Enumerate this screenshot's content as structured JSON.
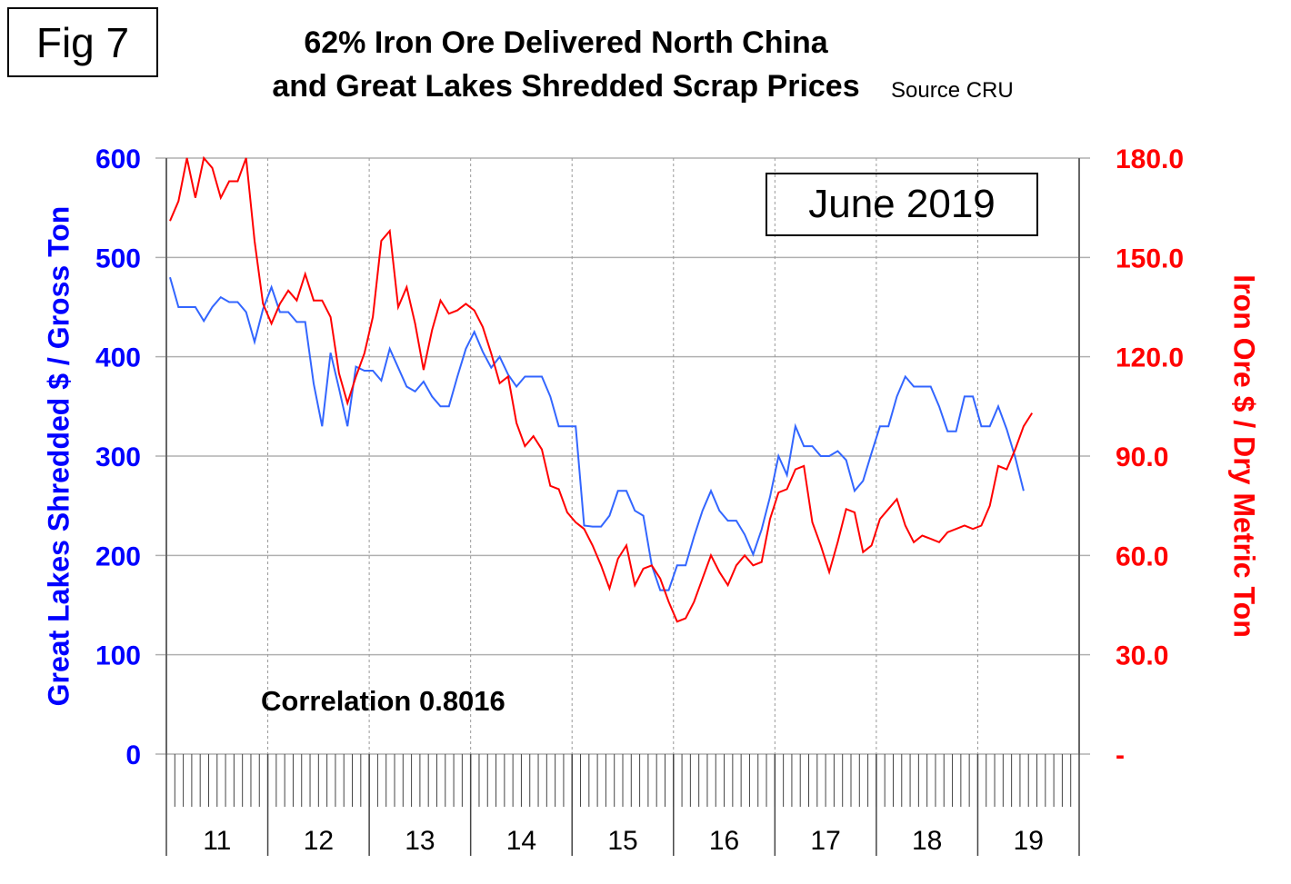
{
  "fig_label": "Fig 7",
  "chart_data": {
    "type": "line",
    "title_line1": "62% Iron Ore Delivered North China",
    "title_line2": "and Great Lakes Shredded Scrap Prices",
    "source": "Source CRU",
    "annotation_date": "June 2019",
    "annotation_correlation": "Correlation 0.8016",
    "ylabel_left": "Great Lakes Shredded $ / Gross Ton",
    "ylabel_right": "Iron Ore $ / Dry Metric Ton",
    "ylim_left": [
      0,
      600
    ],
    "ylim_right": [
      0,
      180
    ],
    "yticks_left": [
      "0",
      "100",
      "200",
      "300",
      "400",
      "500",
      "600"
    ],
    "yticks_right": [
      "-",
      "30.0",
      "60.0",
      "90.0",
      "120.0",
      "150.0",
      "180.0"
    ],
    "xticks": [
      "11",
      "12",
      "13",
      "14",
      "15",
      "16",
      "17",
      "18",
      "19"
    ],
    "x_start": "2011-01",
    "x_frequency": "monthly",
    "grid": true,
    "colors": {
      "scrap": "#3366ff",
      "iron_ore": "#ff0000",
      "left_axis": "#0000ff",
      "right_axis": "#ff0000"
    },
    "series": [
      {
        "axis": "left",
        "color": "#3366ff",
        "values": [
          480,
          450,
          450,
          450,
          436,
          450,
          460,
          455,
          455,
          445,
          415,
          448,
          470,
          445,
          445,
          435,
          435,
          373,
          330,
          404,
          368,
          330,
          390,
          386,
          386,
          376,
          408,
          389,
          370,
          365,
          375,
          360,
          350,
          350,
          380,
          408,
          425,
          405,
          389,
          400,
          382,
          370,
          380,
          380,
          380,
          360,
          330,
          330,
          330,
          230,
          229,
          229,
          240,
          265,
          265,
          245,
          240,
          190,
          165,
          165,
          190,
          190,
          219,
          245,
          265,
          245,
          235,
          235,
          221,
          201,
          226,
          259,
          300,
          281,
          330,
          310,
          310,
          300,
          300,
          305,
          296,
          265,
          275,
          303,
          330,
          330,
          360,
          380,
          370,
          370,
          370,
          350,
          325,
          325,
          360,
          360,
          330,
          330,
          350,
          327,
          299,
          265
        ]
      },
      {
        "axis": "right",
        "color": "#ff0000",
        "values": [
          161,
          167,
          180,
          168,
          180,
          177,
          168,
          173,
          173,
          180,
          155,
          136,
          130,
          136,
          140,
          137,
          145,
          137,
          137,
          132,
          115,
          106,
          114,
          121,
          132,
          155,
          158,
          135,
          141,
          130,
          116,
          128,
          137,
          133,
          134,
          136,
          134,
          129,
          121,
          112,
          114,
          100,
          93,
          96,
          92,
          81,
          80,
          73,
          70,
          68,
          63,
          57,
          50,
          59,
          63,
          51,
          56,
          57,
          53,
          46,
          40,
          41,
          46,
          53,
          60,
          55,
          51,
          57,
          60,
          57,
          58,
          71,
          79,
          80,
          86,
          87,
          70,
          63,
          55,
          64,
          74,
          73,
          61,
          63,
          71,
          74,
          77,
          69,
          64,
          66,
          65,
          64,
          67,
          68,
          69,
          68,
          69,
          75,
          87,
          86,
          92,
          99,
          103
        ]
      }
    ]
  }
}
